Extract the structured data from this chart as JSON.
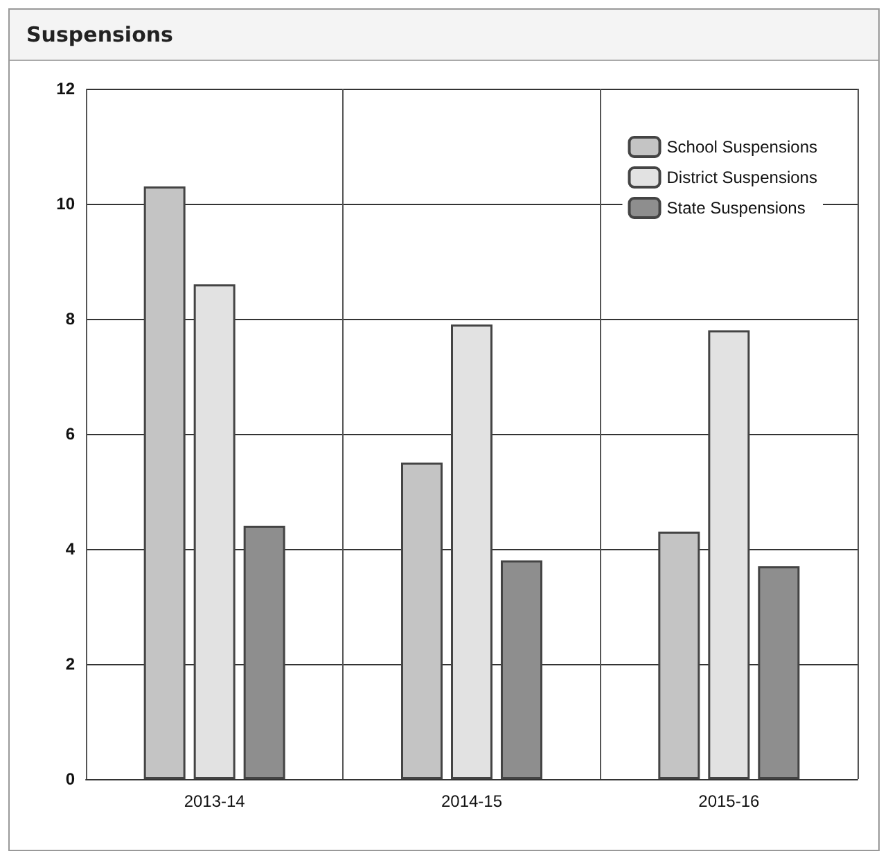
{
  "chart_data": {
    "type": "bar",
    "title": "Suspensions",
    "categories": [
      "2013-14",
      "2014-15",
      "2015-16"
    ],
    "series": [
      {
        "name": "School Suspensions",
        "color": "#c4c4c4",
        "values": [
          10.3,
          5.5,
          4.3
        ]
      },
      {
        "name": "District Suspensions",
        "color": "#e2e2e2",
        "values": [
          8.6,
          7.9,
          7.8
        ]
      },
      {
        "name": "State Suspensions",
        "color": "#8e8e8e",
        "values": [
          4.4,
          3.8,
          3.7
        ]
      }
    ],
    "ylim": [
      0,
      12
    ],
    "yticks": [
      0,
      2,
      4,
      6,
      8,
      10,
      12
    ],
    "grid": true,
    "legend": "top right"
  }
}
